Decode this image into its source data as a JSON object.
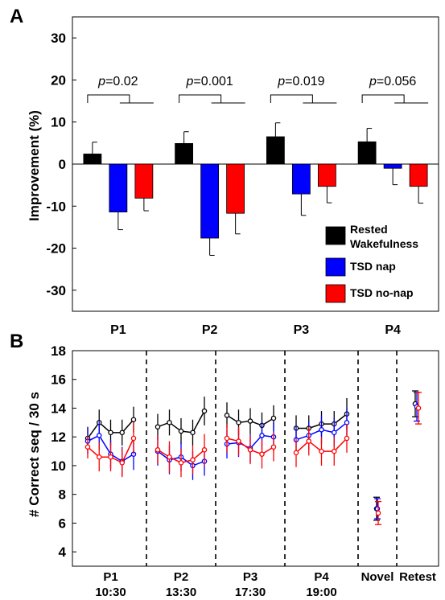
{
  "chart_data": [
    {
      "panel": "A",
      "type": "bar",
      "ylabel": "Improvement (%)",
      "ylim": [
        -35,
        35
      ],
      "yticks": [
        30,
        20,
        10,
        0,
        -10,
        -20,
        -30
      ],
      "categories": [
        "P1",
        "P2",
        "P3",
        "P4"
      ],
      "series": [
        {
          "name": "Rested Wakefulness",
          "color": "#000000",
          "values": [
            2.4,
            4.9,
            6.5,
            5.3
          ],
          "errors": [
            2.8,
            2.8,
            3.3,
            3.2
          ]
        },
        {
          "name": "TSD nap",
          "color": "#0000ff",
          "values": [
            -11.4,
            -17.6,
            -7.1,
            -1.0
          ],
          "errors": [
            4.2,
            4.1,
            5.1,
            3.9
          ]
        },
        {
          "name": "TSD no-nap",
          "color": "#ff0000",
          "values": [
            -8.1,
            -11.7,
            -5.3,
            -5.3
          ],
          "errors": [
            3.0,
            4.9,
            3.9,
            4.0
          ]
        }
      ],
      "annotations": [
        {
          "prefix": "p",
          "text": "=0.02"
        },
        {
          "prefix": "p",
          "text": "=0.001"
        },
        {
          "prefix": "p",
          "text": "=0.019"
        },
        {
          "prefix": "p",
          "text": "=0.056"
        }
      ],
      "legend_position": "bottom-right"
    },
    {
      "panel": "B",
      "type": "line",
      "ylabel": "# Correct seq / 30 s",
      "ylim": [
        3,
        18
      ],
      "yticks": [
        18,
        16,
        14,
        12,
        10,
        8,
        6,
        4
      ],
      "groups": [
        {
          "label": "P1",
          "sublabel": "10:30"
        },
        {
          "label": "P2",
          "sublabel": "13:30"
        },
        {
          "label": "P3",
          "sublabel": "17:30"
        },
        {
          "label": "P4",
          "sublabel": "19:00"
        },
        {
          "label": "Novel",
          "sublabel": ""
        },
        {
          "label": "Retest",
          "sublabel": ""
        }
      ],
      "series": [
        {
          "name": "Rested Wakefulness",
          "color": "#000000",
          "sessions": [
            [
              11.9,
              13.0,
              12.3,
              12.3,
              13.2
            ],
            [
              12.7,
              13.0,
              12.4,
              12.3,
              13.8
            ],
            [
              13.5,
              13.0,
              13.1,
              12.8,
              13.3
            ],
            [
              12.6,
              12.6,
              12.9,
              12.9,
              13.6
            ]
          ],
          "errors": [
            [
              0.8,
              0.9,
              0.9,
              0.9,
              0.9
            ],
            [
              0.9,
              0.9,
              0.9,
              0.9,
              1.0
            ],
            [
              0.9,
              0.9,
              0.9,
              0.9,
              0.9
            ],
            [
              0.9,
              0.9,
              0.9,
              0.9,
              1.1
            ]
          ],
          "novel": 7.0,
          "novel_error": 0.8,
          "retest": 14.3,
          "retest_error": 0.9
        },
        {
          "name": "TSD nap",
          "color": "#0000ff",
          "sessions": [
            [
              11.7,
              12.1,
              10.8,
              10.3,
              10.8
            ],
            [
              11.0,
              10.4,
              10.6,
              10.0,
              10.3
            ],
            [
              11.5,
              11.6,
              11.2,
              12.1,
              12.0
            ],
            [
              11.8,
              12.1,
              12.5,
              12.3,
              13.0
            ]
          ],
          "errors": [
            [
              0.9,
              1.0,
              1.0,
              1.0,
              1.1
            ],
            [
              1.0,
              1.0,
              1.0,
              1.0,
              1.0
            ],
            [
              1.0,
              1.0,
              1.0,
              1.0,
              1.0
            ],
            [
              1.0,
              1.0,
              1.0,
              1.0,
              1.0
            ]
          ],
          "novel": 7.0,
          "novel_error": 0.7,
          "retest": 14.1,
          "retest_error": 1.0
        },
        {
          "name": "TSD no-nap",
          "color": "#ff0000",
          "sessions": [
            [
              11.3,
              10.6,
              10.6,
              10.2,
              11.9
            ],
            [
              11.1,
              10.6,
              10.2,
              10.4,
              11.1
            ],
            [
              11.9,
              11.7,
              11.1,
              10.8,
              11.3
            ],
            [
              10.9,
              11.7,
              11.0,
              11.0,
              11.9
            ]
          ],
          "errors": [
            [
              0.8,
              1.0,
              1.0,
              1.0,
              1.1
            ],
            [
              1.0,
              1.1,
              1.0,
              1.0,
              1.1
            ],
            [
              1.0,
              1.0,
              1.0,
              1.0,
              1.0
            ],
            [
              1.0,
              1.0,
              1.0,
              1.0,
              1.0
            ]
          ],
          "novel": 6.7,
          "novel_error": 0.8,
          "retest": 14.0,
          "retest_error": 1.1
        }
      ]
    }
  ]
}
